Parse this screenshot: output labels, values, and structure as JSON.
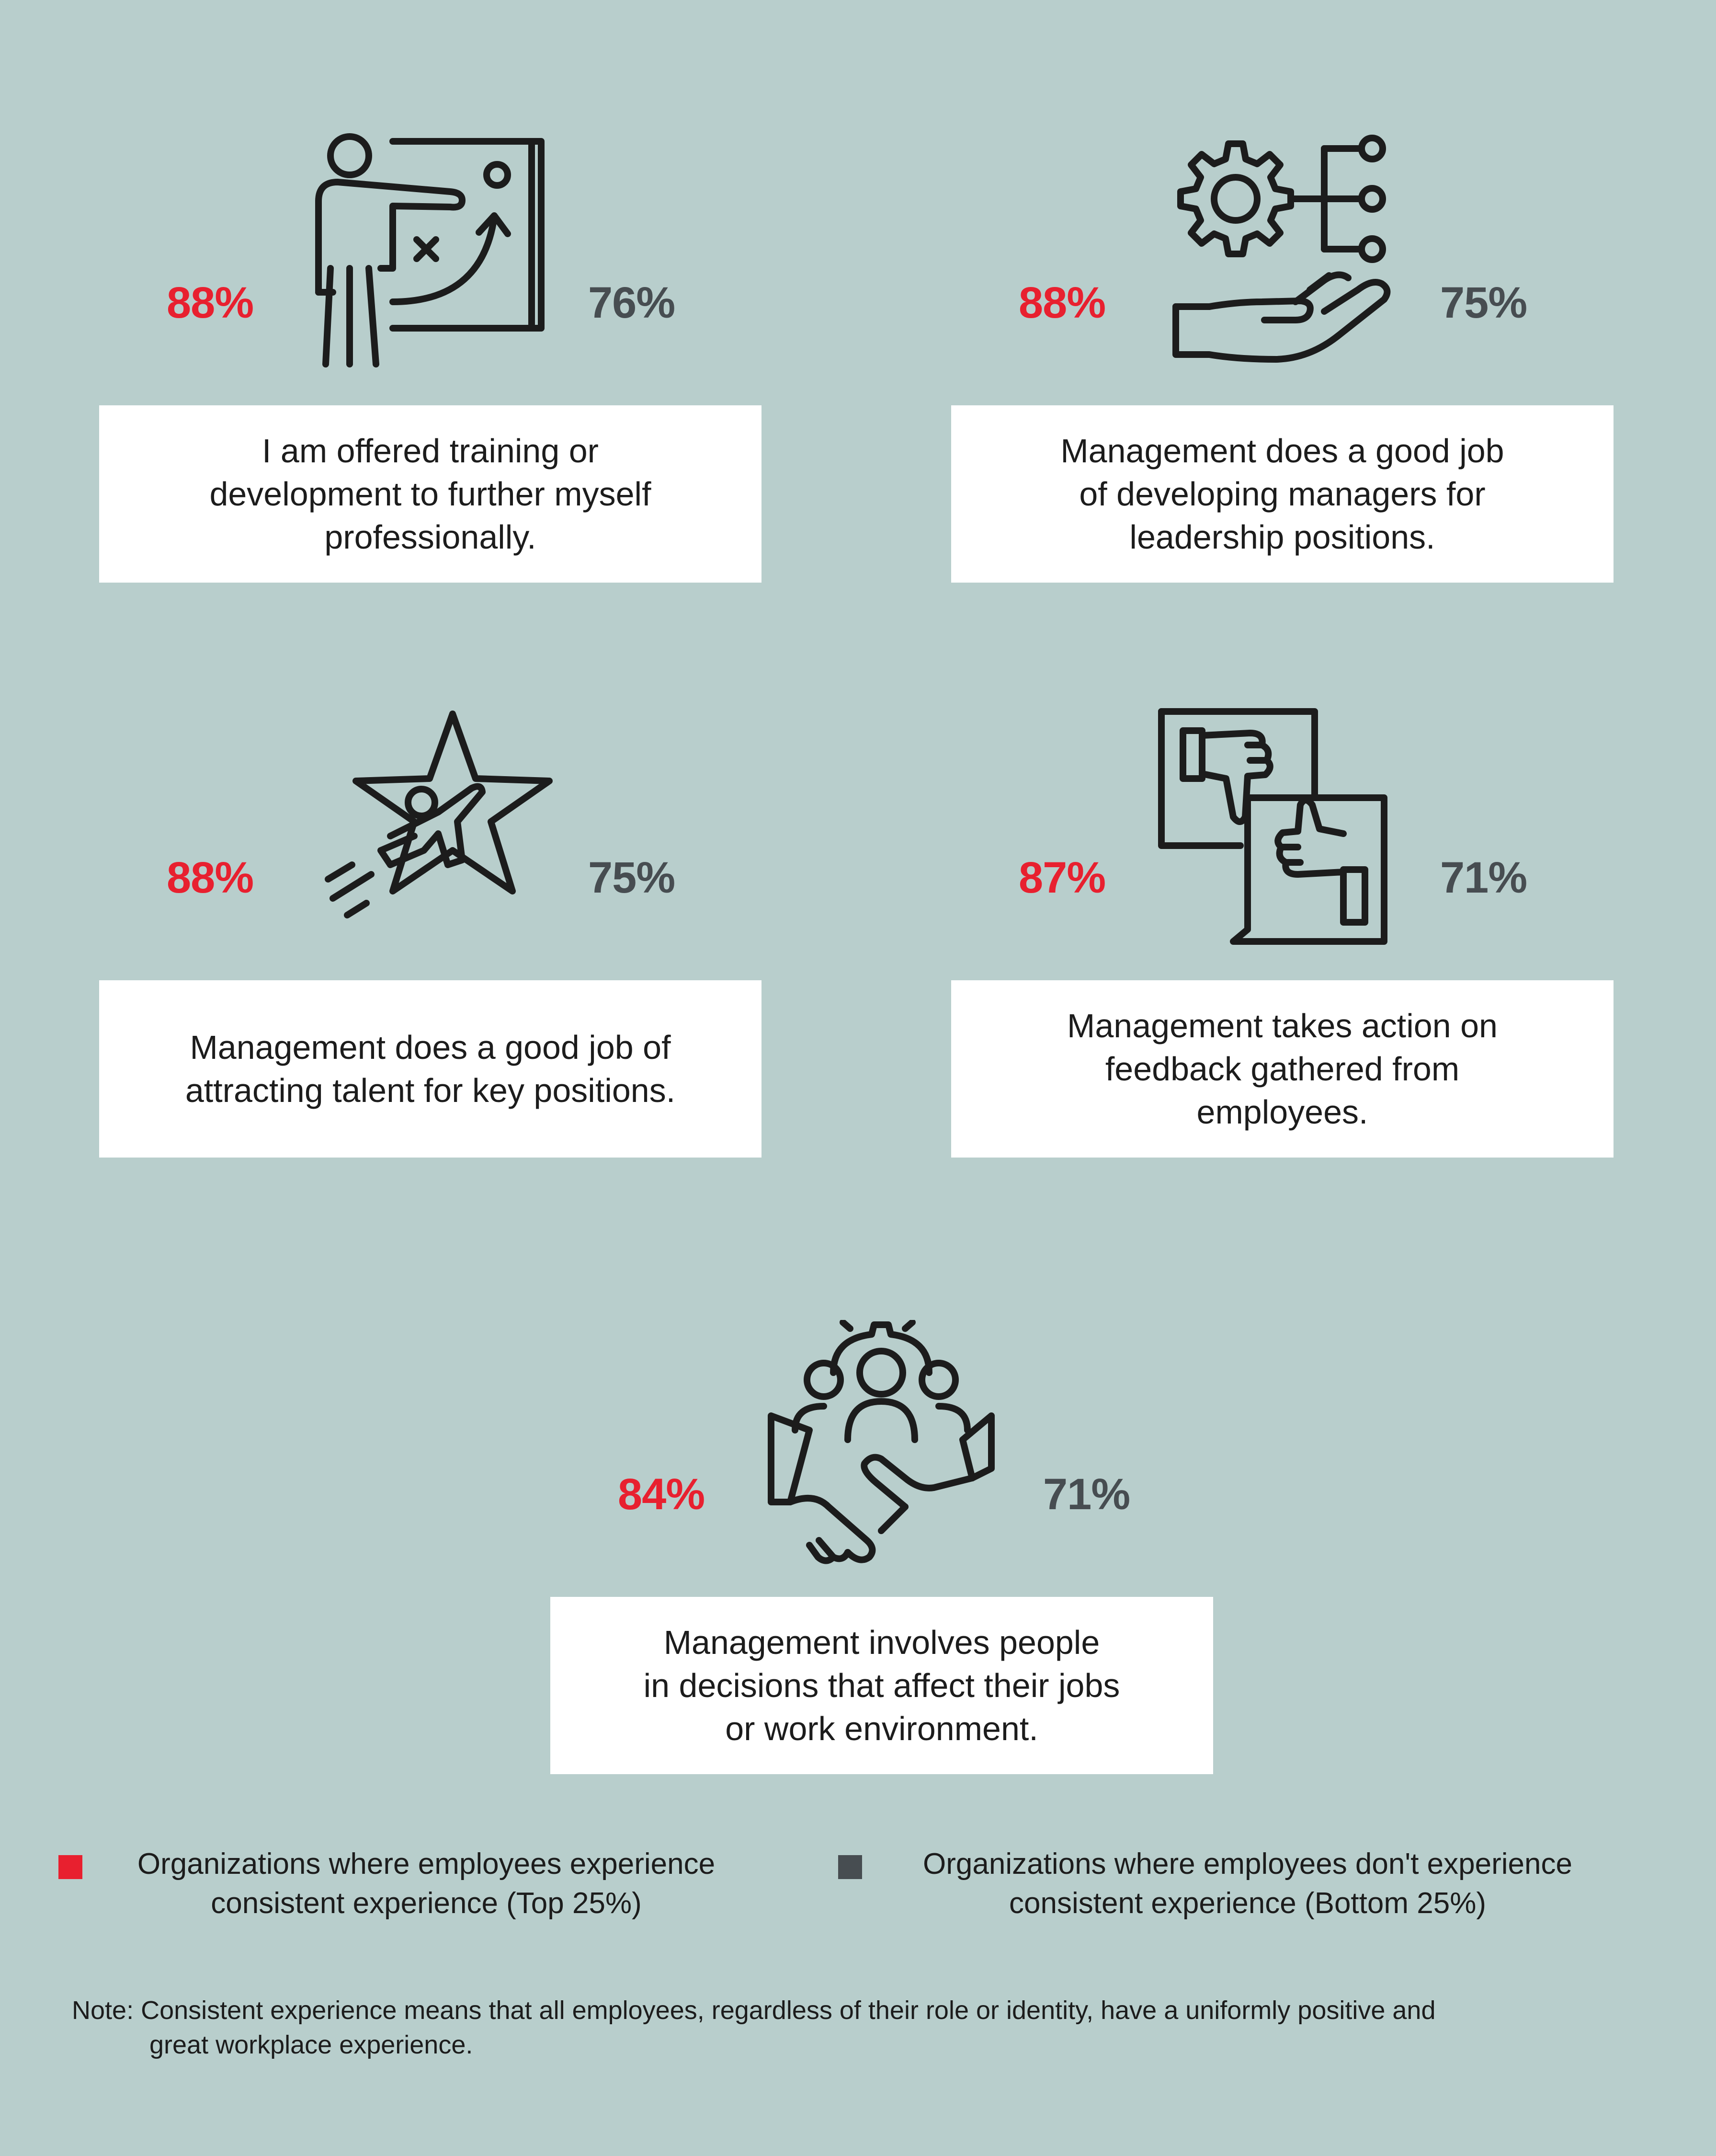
{
  "stats": [
    {
      "icon": "trainer-presentation-icon",
      "top_pct": "88%",
      "bottom_pct": "76%",
      "statement": "I am offered training or\ndevelopment to further myself\nprofessionally."
    },
    {
      "icon": "gear-hand-network-icon",
      "top_pct": "88%",
      "bottom_pct": "75%",
      "statement": "Management does a good job\nof developing managers for\nleadership positions."
    },
    {
      "icon": "star-leap-icon",
      "top_pct": "88%",
      "bottom_pct": "75%",
      "statement": "Management does a good job of\nattracting talent for key positions."
    },
    {
      "icon": "thumbs-feedback-icon",
      "top_pct": "87%",
      "bottom_pct": "71%",
      "statement": "Management takes action on\nfeedback gathered from\nemployees."
    },
    {
      "icon": "team-handshake-icon",
      "top_pct": "84%",
      "bottom_pct": "71%",
      "statement": "Management involves people\nin decisions that affect their jobs\nor work environment."
    }
  ],
  "legend": [
    {
      "label": "Organizations where employees experience\nconsistent experience (Top 25%)",
      "color": "#e8202f"
    },
    {
      "label": "Organizations where employees don't experience\nconsistent experience (Bottom 25%)",
      "color": "#474d51"
    }
  ],
  "note": {
    "label": "Note:",
    "line1": "Consistent experience means that all employees, regardless of their role or identity, have a uniformly positive and",
    "line2": "great workplace experience."
  },
  "colors": {
    "background": "#b8cecc",
    "top_accent": "#e8202f",
    "bottom_accent": "#474d51",
    "card": "#ffffff",
    "icon_stroke": "#1c1c1c"
  }
}
